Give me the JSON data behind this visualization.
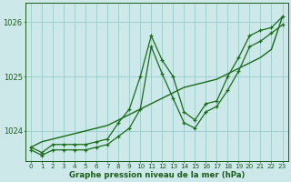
{
  "hours": [
    0,
    1,
    2,
    3,
    4,
    5,
    6,
    7,
    8,
    9,
    10,
    11,
    12,
    13,
    14,
    15,
    16,
    17,
    18,
    19,
    20,
    21,
    22,
    23
  ],
  "line_straight": [
    1023.7,
    1023.8,
    1023.85,
    1023.9,
    1023.95,
    1024.0,
    1024.05,
    1024.1,
    1024.2,
    1024.3,
    1024.4,
    1024.5,
    1024.6,
    1024.7,
    1024.8,
    1024.85,
    1024.9,
    1024.95,
    1025.05,
    1025.15,
    1025.25,
    1025.35,
    1025.5,
    1026.1
  ],
  "line_upper": [
    1023.7,
    1023.6,
    1023.75,
    1023.75,
    1023.75,
    1023.75,
    1023.8,
    1023.85,
    1024.15,
    1024.4,
    1025.0,
    1025.75,
    1025.3,
    1025.0,
    1024.35,
    1024.2,
    1024.5,
    1024.55,
    1025.0,
    1025.35,
    1025.75,
    1025.85,
    1025.9,
    1026.1
  ],
  "line_lower": [
    1023.65,
    1023.55,
    1023.65,
    1023.65,
    1023.65,
    1023.65,
    1023.7,
    1023.75,
    1023.9,
    1024.05,
    1024.4,
    1025.55,
    1025.05,
    1024.6,
    1024.15,
    1024.05,
    1024.35,
    1024.45,
    1024.75,
    1025.1,
    1025.55,
    1025.65,
    1025.8,
    1025.95
  ],
  "bg_color": "#cce8e8",
  "grid_color": "#99cccc",
  "line_color": "#1a6b1a",
  "ylim_min": 1023.45,
  "ylim_max": 1026.35,
  "yticks": [
    1024,
    1025,
    1026
  ],
  "xlabel": "Graphe pression niveau de la mer (hPa)",
  "label_color": "#1a5c1a"
}
